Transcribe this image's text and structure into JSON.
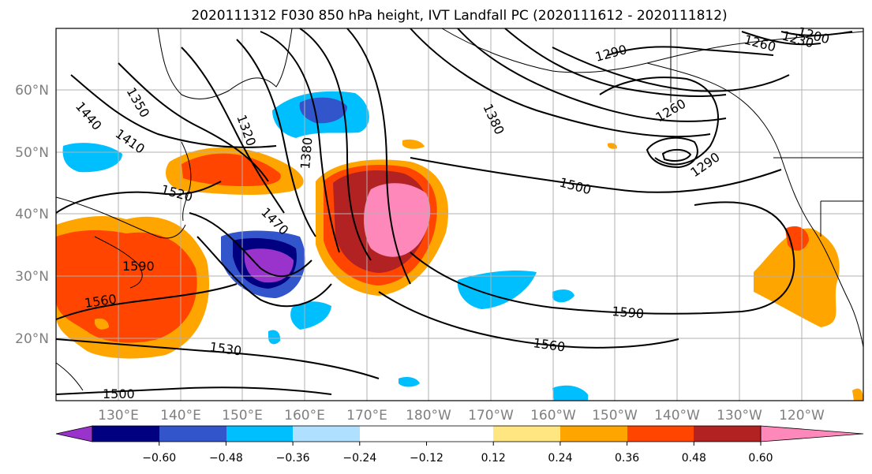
{
  "title": "2020111312 F030 850 hPa height, IVT Landfall PC (2020111612 - 2020111812)",
  "lat_labels": [
    "60°N",
    "50°N",
    "40°N",
    "30°N",
    "20°N"
  ],
  "lon_labels": [
    "130°E",
    "140°E",
    "150°E",
    "160°E",
    "170°E",
    "180°W",
    "170°W",
    "160°W",
    "150°W",
    "140°W",
    "130°W",
    "120°W"
  ],
  "colorbar": {
    "colors": [
      "#9933cc",
      "#000080",
      "#3355cc",
      "#00bfff",
      "#b0e0ff",
      "#ffffff",
      "#ffffff",
      "#ffe680",
      "#ffa500",
      "#ff4500",
      "#b22222",
      "#ff88bb"
    ],
    "ticks": [
      "−0.60",
      "−0.48",
      "−0.36",
      "−0.24",
      "−0.12",
      "0.12",
      "0.24",
      "0.36",
      "0.48",
      "0.60"
    ]
  },
  "contour_labels": [
    "1440",
    "1350",
    "1410",
    "1320",
    "1380",
    "1380",
    "1290",
    "1260",
    "1230",
    "1200",
    "1260",
    "1290",
    "1500",
    "1520",
    "1470",
    "1590",
    "1560",
    "1590",
    "1560",
    "1530",
    "1500"
  ]
}
